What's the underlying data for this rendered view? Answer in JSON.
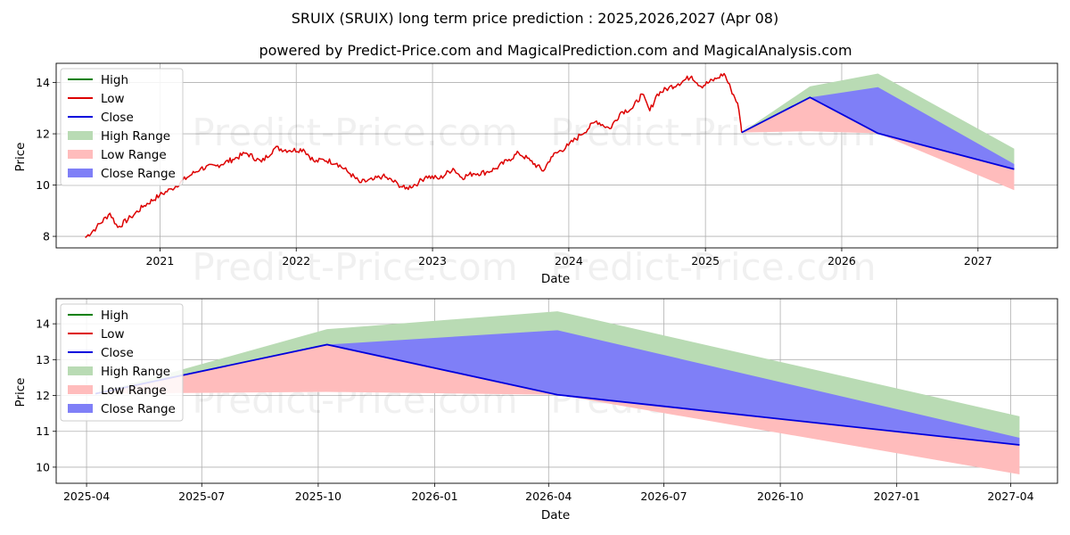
{
  "title": "SRUIX (SRUIX) long term price prediction : 2025,2026,2027 (Apr 08)",
  "subtitle": "powered by Predict-Price.com and MagicalPrediction.com and MagicalAnalysis.com",
  "watermark": "Predict-Price.com",
  "colors": {
    "high": "#008000",
    "low": "#dd0000",
    "close": "#0000dd",
    "high_range": "#b9dbb4",
    "low_range": "#ffbcbc",
    "close_range": "#7f7ff7",
    "grid": "#b0b0b0"
  },
  "chart_data": [
    {
      "type": "line",
      "name": "overview",
      "xlabel": "Date",
      "ylabel": "Price",
      "x_ticks": [
        "2021",
        "2022",
        "2023",
        "2024",
        "2025",
        "2026",
        "2027"
      ],
      "y_ticks": [
        "8",
        "10",
        "12",
        "14"
      ],
      "xlim": [
        "2020-03-29",
        "2027-08-02"
      ],
      "ylim": [
        7.55,
        14.75
      ],
      "grid": true,
      "legend": "upper-left",
      "legend_entries": [
        "High",
        "Low",
        "Close",
        "High Range",
        "Low Range",
        "Close Range"
      ],
      "historical_low": {
        "name": "Low",
        "points": [
          [
            "2020-06-15",
            7.95
          ],
          [
            "2020-07-15",
            8.35
          ],
          [
            "2020-08-20",
            8.9
          ],
          [
            "2020-09-10",
            8.35
          ],
          [
            "2020-10-15",
            8.75
          ],
          [
            "2020-11-20",
            9.2
          ],
          [
            "2020-12-31",
            9.6
          ],
          [
            "2021-02-01",
            9.85
          ],
          [
            "2021-03-15",
            10.3
          ],
          [
            "2021-04-20",
            10.65
          ],
          [
            "2021-06-01",
            10.75
          ],
          [
            "2021-07-15",
            11.0
          ],
          [
            "2021-08-20",
            11.25
          ],
          [
            "2021-09-30",
            10.9
          ],
          [
            "2021-11-05",
            11.45
          ],
          [
            "2021-12-15",
            11.35
          ],
          [
            "2022-01-20",
            11.4
          ],
          [
            "2022-02-20",
            10.9
          ],
          [
            "2022-03-15",
            11.0
          ],
          [
            "2022-04-20",
            10.85
          ],
          [
            "2022-05-25",
            10.45
          ],
          [
            "2022-06-20",
            10.1
          ],
          [
            "2022-07-25",
            10.2
          ],
          [
            "2022-08-20",
            10.35
          ],
          [
            "2022-09-30",
            10.05
          ],
          [
            "2022-10-20",
            9.85
          ],
          [
            "2022-11-25",
            10.1
          ],
          [
            "2022-12-15",
            10.35
          ],
          [
            "2023-01-20",
            10.25
          ],
          [
            "2023-02-25",
            10.65
          ],
          [
            "2023-03-20",
            10.3
          ],
          [
            "2023-04-20",
            10.45
          ],
          [
            "2023-05-25",
            10.5
          ],
          [
            "2023-06-20",
            10.65
          ],
          [
            "2023-07-25",
            11.0
          ],
          [
            "2023-08-20",
            11.25
          ],
          [
            "2023-09-20",
            10.95
          ],
          [
            "2023-10-25",
            10.55
          ],
          [
            "2023-11-15",
            11.1
          ],
          [
            "2023-12-31",
            11.55
          ],
          [
            "2024-02-01",
            11.95
          ],
          [
            "2024-03-15",
            12.5
          ],
          [
            "2024-04-20",
            12.2
          ],
          [
            "2024-05-20",
            12.85
          ],
          [
            "2024-06-20",
            13.0
          ],
          [
            "2024-07-15",
            13.55
          ],
          [
            "2024-08-05",
            12.9
          ],
          [
            "2024-08-25",
            13.55
          ],
          [
            "2024-09-25",
            13.8
          ],
          [
            "2024-10-20",
            13.95
          ],
          [
            "2024-11-25",
            14.25
          ],
          [
            "2024-12-20",
            13.85
          ],
          [
            "2025-01-30",
            14.15
          ],
          [
            "2025-02-20",
            14.35
          ],
          [
            "2025-03-10",
            13.75
          ],
          [
            "2025-03-28",
            13.2
          ],
          [
            "2025-04-04",
            12.55
          ],
          [
            "2025-04-08",
            12.05
          ]
        ]
      },
      "forecast_x": [
        "2025-04-08",
        "2025-10-08",
        "2026-04-08",
        "2027-04-08"
      ],
      "close": [
        12.05,
        13.42,
        12.02,
        10.62
      ],
      "high_range": {
        "upper": [
          12.05,
          13.85,
          14.35,
          11.42
        ],
        "lower": [
          12.05,
          13.15,
          12.02,
          10.62
        ]
      },
      "low_range": {
        "upper": [
          12.05,
          13.42,
          12.02,
          10.62
        ],
        "lower": [
          12.05,
          12.1,
          12.02,
          9.8
        ]
      },
      "close_range": {
        "upper": [
          12.05,
          13.42,
          13.82,
          10.82
        ],
        "lower": [
          12.05,
          13.42,
          12.02,
          10.62
        ]
      }
    },
    {
      "type": "line",
      "name": "forecast-detail",
      "xlabel": "Date",
      "ylabel": "Price",
      "x_ticks": [
        "2025-04",
        "2025-07",
        "2025-10",
        "2026-01",
        "2026-04",
        "2026-07",
        "2026-10",
        "2027-01",
        "2027-04"
      ],
      "y_ticks": [
        "10",
        "11",
        "12",
        "13",
        "14"
      ],
      "xlim": [
        "2025-03-08",
        "2027-05-08"
      ],
      "ylim": [
        9.55,
        14.7
      ],
      "grid": true,
      "legend": "upper-left",
      "legend_entries": [
        "High",
        "Low",
        "Close",
        "High Range",
        "Low Range",
        "Close Range"
      ],
      "forecast_x": [
        "2025-04-08",
        "2025-10-08",
        "2026-04-08",
        "2027-04-08"
      ],
      "close": [
        12.05,
        13.42,
        12.02,
        10.62
      ],
      "high_range": {
        "upper": [
          12.05,
          13.85,
          14.35,
          11.42
        ],
        "lower": [
          12.05,
          13.15,
          12.02,
          10.62
        ]
      },
      "low_range": {
        "upper": [
          12.05,
          13.42,
          12.02,
          10.62
        ],
        "lower": [
          12.05,
          12.1,
          12.02,
          9.8
        ]
      },
      "close_range": {
        "upper": [
          12.05,
          13.42,
          13.82,
          10.82
        ],
        "lower": [
          12.05,
          13.42,
          12.02,
          10.62
        ]
      }
    }
  ]
}
